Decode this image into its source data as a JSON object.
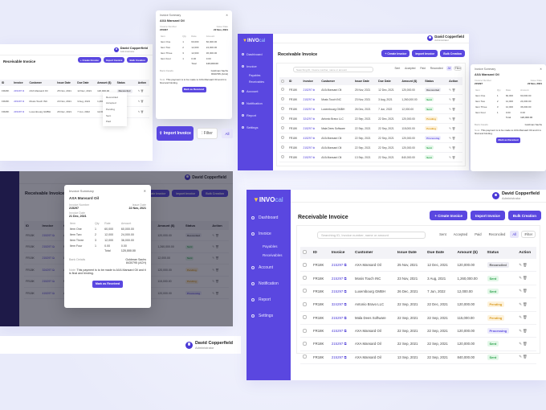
{
  "brand": {
    "logo_main": "INVO",
    "logo_suffix": "cal",
    "accent": "#5a47e0"
  },
  "user": {
    "name": "David Copperfield",
    "role": "Administrator"
  },
  "page": {
    "title": "Receivable Invoice"
  },
  "buttons": {
    "create": "+ Create Invoice",
    "import": "Import Invoice",
    "bulk": "Bulk Creation",
    "filter": "Filter",
    "mark_received": "Mark as Received"
  },
  "search": {
    "placeholder": "Searching ID, Invoice number, name or amount"
  },
  "chips": [
    "Sent",
    "Accepted",
    "Paid",
    "Reconciled",
    "All"
  ],
  "sidebar": {
    "items": [
      {
        "label": "Dashboard",
        "icon": "grid-icon"
      },
      {
        "label": "Invoice",
        "icon": "document-icon"
      },
      {
        "label": "Payables",
        "icon": "payables-icon"
      },
      {
        "label": "Receivables",
        "icon": "receivables-icon"
      },
      {
        "label": "Account",
        "icon": "account-icon"
      },
      {
        "label": "Notification",
        "icon": "bell-icon"
      },
      {
        "label": "Report",
        "icon": "report-icon"
      },
      {
        "label": "Settings",
        "icon": "gear-icon"
      }
    ]
  },
  "table": {
    "headers": [
      "ID",
      "Invoice",
      "Customer",
      "Issue Date",
      "Due Date",
      "Amount ($)",
      "Status",
      "Action"
    ],
    "rows": [
      {
        "id": "FR18K",
        "invoice": "215297",
        "customer": "AXA Mansard Oil",
        "issue": "25 Nov, 2021",
        "due": "12 Dec, 2021",
        "amount": "120,000.00",
        "status": "Reconciled",
        "cls": "st-rec"
      },
      {
        "id": "FR18K",
        "invoice": "215297",
        "customer": "Mosis Touch INC",
        "issue": "23 Nov, 2021",
        "due": "3 Aug, 2021",
        "amount": "1,260,000.00",
        "status": "Sent",
        "cls": "st-sent"
      },
      {
        "id": "FR18K",
        "invoice": "215297",
        "customer": "Luxembourg GMBH",
        "issue": "26 Dec, 2021",
        "due": "7 Jun, 2022",
        "amount": "12,000.00",
        "status": "Sent",
        "cls": "st-sent"
      },
      {
        "id": "FR18K",
        "invoice": "324297",
        "customer": "Antonio Bravo LLC",
        "issue": "22 Sep, 2021",
        "due": "22 Dec, 2021",
        "amount": "120,000.00",
        "status": "Pending",
        "cls": "st-pend"
      },
      {
        "id": "FR18K",
        "invoice": "215297",
        "customer": "Mala Dees Software",
        "issue": "22 Sep, 2021",
        "due": "22 Sep, 2021",
        "amount": "115,000.00",
        "status": "Pending",
        "cls": "st-pend"
      },
      {
        "id": "FR18K",
        "invoice": "415297",
        "customer": "AXA Mansard Oil",
        "issue": "22 Sep, 2021",
        "due": "22 Sep, 2021",
        "amount": "120,000.00",
        "status": "Processing",
        "cls": "st-proc"
      },
      {
        "id": "FR18K",
        "invoice": "215297",
        "customer": "AXA Mansard Oil",
        "issue": "22 Sep, 2021",
        "due": "22 Sep, 2021",
        "amount": "120,000.00",
        "status": "Sent",
        "cls": "st-sent"
      },
      {
        "id": "FR18K",
        "invoice": "215297",
        "customer": "AXA Mansard Oil",
        "issue": "13 Sep, 2021",
        "due": "22 Sep, 2021",
        "amount": "840,000.00",
        "status": "Sent",
        "cls": "st-sent"
      }
    ]
  },
  "dropdown": [
    "Reconciled",
    "Accepted",
    "Pending",
    "Sent",
    "Paid"
  ],
  "modal": {
    "header": "Invoice Summary",
    "customer": "AXA Mansard Oil",
    "invoice_no_label": "Invoice Number",
    "invoice_no": "215297",
    "date_label": "Issue Date",
    "date": "22 Nov, 2021",
    "inv_date_label": "Invoice Date",
    "inv_date": "21 Dec, 2021",
    "item_headers": [
      "Item",
      "Qty",
      "Rate",
      "Amount"
    ],
    "items": [
      {
        "item": "Item One",
        "qty": "1",
        "rate": "60,000",
        "amount": "60,000.00"
      },
      {
        "item": "Item Two",
        "qty": "2",
        "rate": "12,000",
        "amount": "24,000.00"
      },
      {
        "item": "Item Three",
        "qty": "3",
        "rate": "12,000",
        "amount": "36,000.00"
      },
      {
        "item": "Item Four",
        "qty": "1",
        "rate": "0.00",
        "amount": "0.00"
      }
    ],
    "total_label": "Total",
    "total": "120,000.00",
    "bank_label": "Bank Details",
    "bank": "Goldman Sachs",
    "account": "8430795 (ACH)",
    "note_label": "Note:",
    "note": "This payment is to be made to AXA Mansard Oil and it is final and binding."
  }
}
